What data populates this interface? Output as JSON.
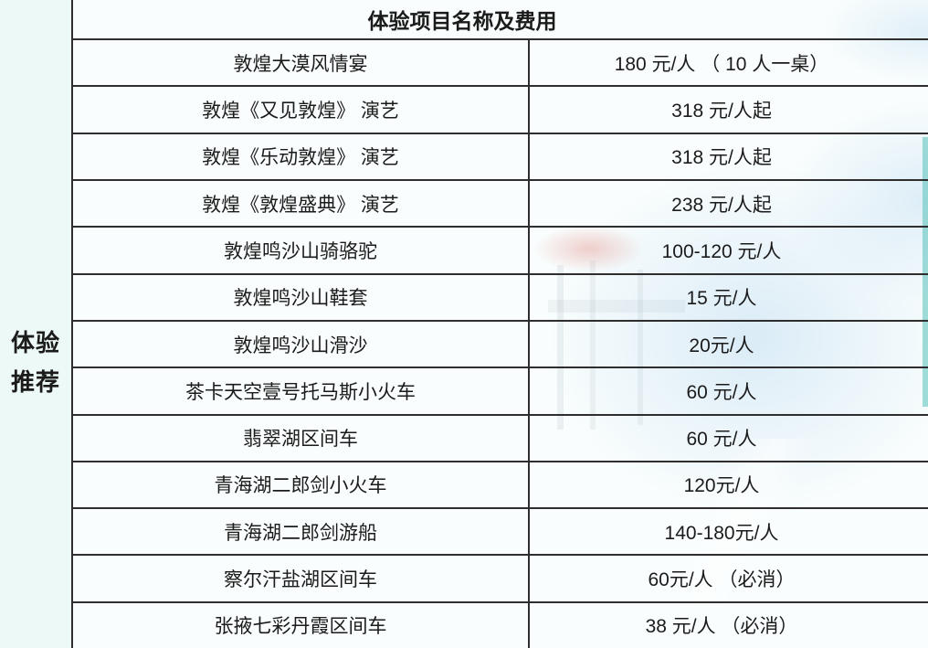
{
  "side_label": {
    "line1": "体验",
    "line2": "推荐"
  },
  "table": {
    "header_title": "体验项目名称及费用",
    "rows": [
      {
        "name": "敦煌大漠风情宴",
        "price": "180 元/人 （ 10 人一桌）"
      },
      {
        "name": "敦煌《又见敦煌》 演艺",
        "price": "318 元/人起"
      },
      {
        "name": "敦煌《乐动敦煌》 演艺",
        "price": "318 元/人起"
      },
      {
        "name": "敦煌《敦煌盛典》 演艺",
        "price": "238 元/人起"
      },
      {
        "name": "敦煌鸣沙山骑骆驼",
        "price": "100-120 元/人"
      },
      {
        "name": "敦煌鸣沙山鞋套",
        "price": "15 元/人"
      },
      {
        "name": "敦煌鸣沙山滑沙",
        "price": "20元/人"
      },
      {
        "name": "茶卡天空壹号托马斯小火车",
        "price": "60 元/人"
      },
      {
        "name": "翡翠湖区间车",
        "price": "60 元/人"
      },
      {
        "name": "青海湖二郎剑小火车",
        "price": "120元/人"
      },
      {
        "name": "青海湖二郎剑游船",
        "price": "140-180元/人"
      },
      {
        "name": "察尔汗盐湖区间车",
        "price": "60元/人 （必消）"
      },
      {
        "name": "张掖七彩丹霞区间车",
        "price": "38 元/人 （必消）"
      }
    ]
  },
  "colors": {
    "page_background": "#ecf9f6",
    "table_background": "#fcfeff",
    "border": "#2e2e2e",
    "text": "#1b1b1b",
    "bg_art_blue": "#bcdaf0",
    "bg_art_red": "#d66255",
    "bg_art_teal": "#58c2bb"
  }
}
